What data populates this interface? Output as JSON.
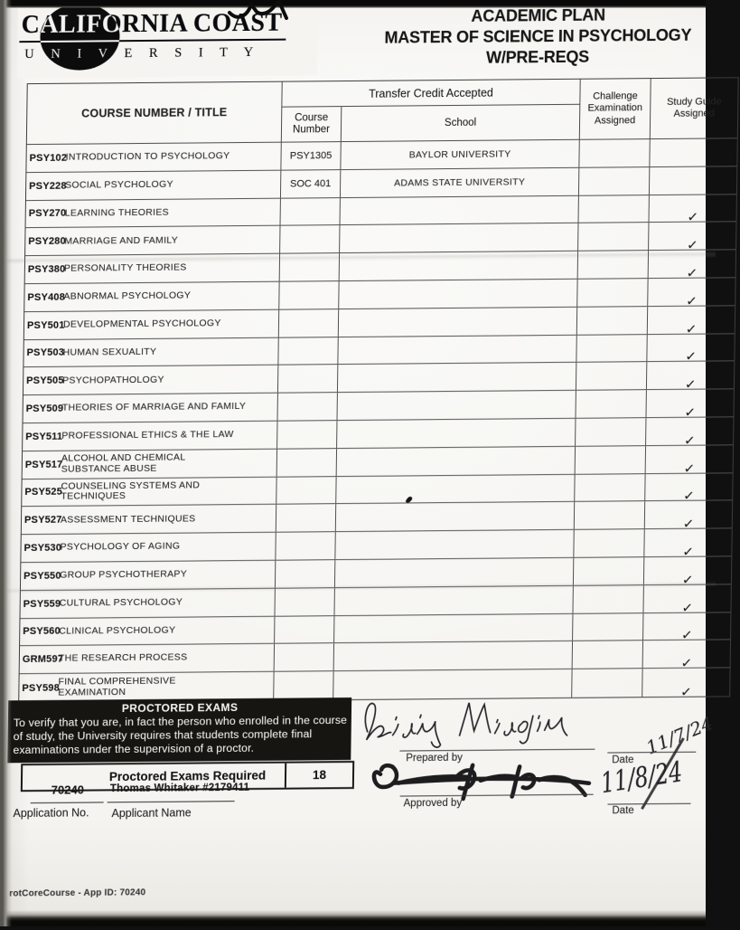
{
  "logo": {
    "line1": "CALIFORNIA COAST",
    "line2": "U N I V E R S I T Y"
  },
  "header": {
    "line1": "ACADEMIC PLAN",
    "line2": "MASTER OF SCIENCE IN PSYCHOLOGY",
    "line3": "W/PRE-REQS"
  },
  "table": {
    "course_header": "COURSE NUMBER / TITLE",
    "transfer_header": "Transfer Credit Accepted",
    "transfer_course_sub": "Course Number",
    "school_header": "School",
    "challenge_header": "Challenge Examination Assigned",
    "study_header": "Study Guide Assigned",
    "rows": [
      {
        "code": "PSY102",
        "title": "INTRODUCTION TO PSYCHOLOGY",
        "transfer_course": "PSY1305",
        "school": "BAYLOR UNIVERSITY",
        "challenge": "",
        "study_guide": ""
      },
      {
        "code": "PSY228",
        "title": "SOCIAL PSYCHOLOGY",
        "transfer_course": "SOC 401",
        "school": "ADAMS STATE UNIVERSITY",
        "challenge": "",
        "study_guide": ""
      },
      {
        "code": "PSY270",
        "title": "LEARNING THEORIES",
        "transfer_course": "",
        "school": "",
        "challenge": "",
        "study_guide": "✓"
      },
      {
        "code": "PSY280",
        "title": "MARRIAGE AND FAMILY",
        "transfer_course": "",
        "school": "",
        "challenge": "",
        "study_guide": "✓"
      },
      {
        "code": "PSY380",
        "title": "PERSONALITY THEORIES",
        "transfer_course": "",
        "school": "",
        "challenge": "",
        "study_guide": "✓"
      },
      {
        "code": "PSY408",
        "title": "ABNORMAL PSYCHOLOGY",
        "transfer_course": "",
        "school": "",
        "challenge": "",
        "study_guide": "✓"
      },
      {
        "code": "PSY501",
        "title": "DEVELOPMENTAL PSYCHOLOGY",
        "transfer_course": "",
        "school": "",
        "challenge": "",
        "study_guide": "✓"
      },
      {
        "code": "PSY503",
        "title": "HUMAN SEXUALITY",
        "transfer_course": "",
        "school": "",
        "challenge": "",
        "study_guide": "✓"
      },
      {
        "code": "PSY505",
        "title": "PSYCHOPATHOLOGY",
        "transfer_course": "",
        "school": "",
        "challenge": "",
        "study_guide": "✓"
      },
      {
        "code": "PSY509",
        "title": "THEORIES OF MARRIAGE AND FAMILY",
        "transfer_course": "",
        "school": "",
        "challenge": "",
        "study_guide": "✓"
      },
      {
        "code": "PSY511",
        "title": "PROFESSIONAL ETHICS & THE LAW",
        "transfer_course": "",
        "school": "",
        "challenge": "",
        "study_guide": "✓"
      },
      {
        "code": "PSY517",
        "title": "ALCOHOL AND CHEMICAL SUBSTANCE ABUSE",
        "transfer_course": "",
        "school": "",
        "challenge": "",
        "study_guide": "✓"
      },
      {
        "code": "PSY525",
        "title": "COUNSELING SYSTEMS AND TECHNIQUES",
        "transfer_course": "",
        "school": "",
        "challenge": "",
        "study_guide": "✓"
      },
      {
        "code": "PSY527",
        "title": "ASSESSMENT TECHNIQUES",
        "transfer_course": "",
        "school": "",
        "challenge": "",
        "study_guide": "✓"
      },
      {
        "code": "PSY530",
        "title": "PSYCHOLOGY OF AGING",
        "transfer_course": "",
        "school": "",
        "challenge": "",
        "study_guide": "✓"
      },
      {
        "code": "PSY550",
        "title": "GROUP PSYCHOTHERAPY",
        "transfer_course": "",
        "school": "",
        "challenge": "",
        "study_guide": "✓"
      },
      {
        "code": "PSY559",
        "title": "CULTURAL PSYCHOLOGY",
        "transfer_course": "",
        "school": "",
        "challenge": "",
        "study_guide": "✓"
      },
      {
        "code": "PSY560",
        "title": "CLINICAL PSYCHOLOGY",
        "transfer_course": "",
        "school": "",
        "challenge": "",
        "study_guide": "✓"
      },
      {
        "code": "GRM597",
        "title": "THE RESEARCH PROCESS",
        "transfer_course": "",
        "school": "",
        "challenge": "",
        "study_guide": "✓"
      },
      {
        "code": "PSY598",
        "title": "FINAL COMPREHENSIVE EXAMINATION",
        "transfer_course": "",
        "school": "",
        "challenge": "",
        "study_guide": "✓"
      }
    ]
  },
  "proctored": {
    "title": "PROCTORED EXAMS",
    "body": "To verify that you are, in fact the person who enrolled in the course of study, the University requires that students complete final examinations under the supervision of a proctor.",
    "required_label": "Proctored Exams Required",
    "required_value": "18"
  },
  "application": {
    "number": "70240",
    "number_label": "Application No.",
    "name": "Thomas Whitaker #2179411",
    "name_label": "Applicant Name"
  },
  "signoff": {
    "prepared_label": "Prepared by",
    "approved_label": "Approved by",
    "date_label": "Date",
    "prepared_date": "11/7/24",
    "approved_date": "11/8/24",
    "prepared_signature_name": "Brigid Mioglia (handwritten signature)",
    "approved_signature_name": "Doug Petrulal (handwritten signature)"
  },
  "footer": {
    "line": "rotCoreCourse - App ID: 70240"
  }
}
